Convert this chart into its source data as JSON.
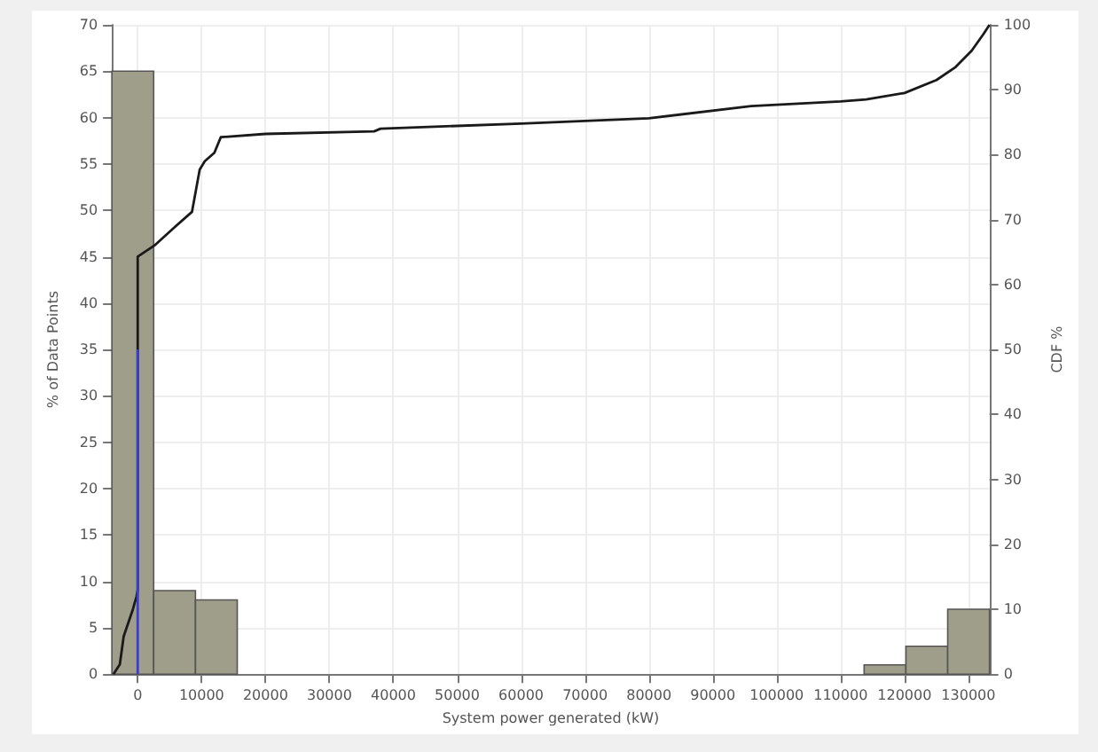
{
  "chart_data": {
    "type": "histogram",
    "xlabel": "System power generated (kW)",
    "ylabel": "% of Data Points",
    "y2label": "CDF %",
    "bins": [
      -4040,
      2500,
      9040,
      15580,
      22120,
      28660,
      35200,
      41740,
      48280,
      54820,
      61360,
      67900,
      74440,
      80980,
      87520,
      94060,
      100600,
      107140,
      113680,
      120220,
      126760,
      133300
    ],
    "values": [
      65,
      9,
      8,
      0,
      0,
      0,
      0,
      0,
      0,
      0,
      0,
      0,
      0,
      0,
      0,
      0,
      0,
      0,
      1,
      3,
      7
    ],
    "color": "#9e9e8a",
    "series": [
      {
        "type": "line",
        "axis": "y2",
        "color": "#1a1a1a",
        "marker": "none",
        "x": [
          -3800,
          -2800,
          -2200,
          -750,
          -170,
          0,
          0,
          2600,
          5500,
          8500,
          9700,
          10500,
          12000,
          13000,
          20000,
          37000,
          38000,
          60000,
          80000,
          96000,
          110000,
          114000,
          120000,
          125000,
          128000,
          130500,
          132300,
          133300
        ],
        "values": [
          0,
          1.5,
          5.8,
          10,
          12,
          13,
          64.3,
          66,
          68.6,
          71.2,
          77.7,
          79,
          80.3,
          82.7,
          83.2,
          83.6,
          84,
          84.8,
          85.6,
          87.5,
          88.2,
          88.5,
          89.5,
          91.5,
          93.5,
          96,
          98.5,
          100
        ]
      },
      {
        "type": "line",
        "axis": "y",
        "color": "#3b3bd6",
        "marker": "none",
        "x": [
          0,
          0
        ],
        "values": [
          0,
          35
        ]
      }
    ],
    "xlim": [
      -4040,
      133300
    ],
    "xticks": [
      0,
      10000,
      20000,
      30000,
      40000,
      50000,
      60000,
      70000,
      80000,
      90000,
      100000,
      110000,
      120000,
      130000
    ],
    "ylim": [
      0,
      70
    ],
    "yticks": [
      0,
      5,
      10,
      15,
      20,
      25,
      30,
      35,
      40,
      45,
      50,
      55,
      60,
      65,
      70
    ],
    "y2lim": [
      0,
      100
    ],
    "y2ticks": [
      0,
      10,
      20,
      30,
      40,
      50,
      60,
      70,
      80,
      90,
      100
    ],
    "grid": true
  }
}
